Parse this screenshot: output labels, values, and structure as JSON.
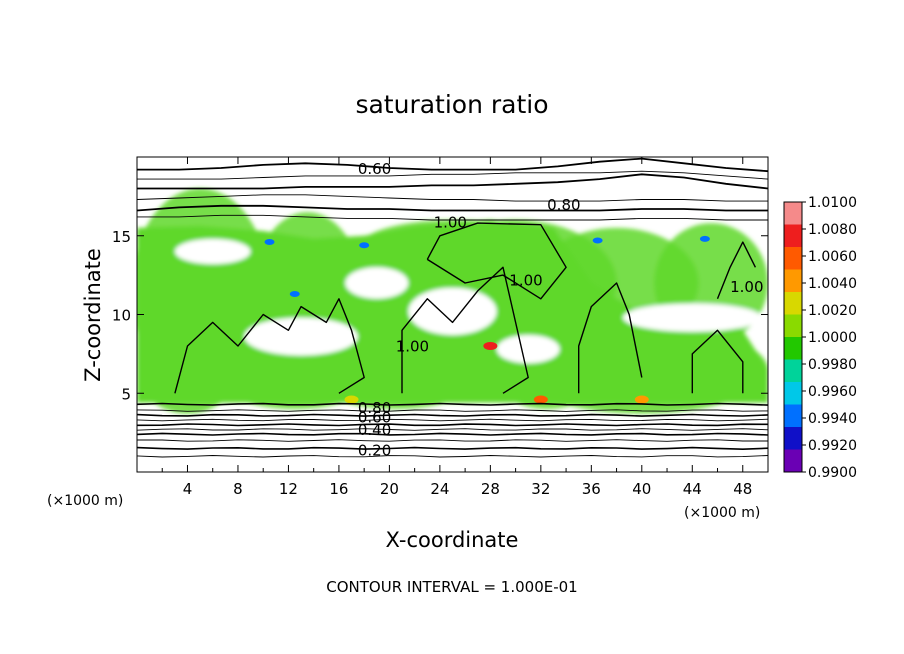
{
  "chart_data": {
    "type": "contour",
    "title": "saturation ratio",
    "xlabel": "X-coordinate",
    "ylabel": "Z-coordinate",
    "x_unit_label": "(×1000 m)",
    "z_unit_label": "(×1000 m)",
    "footer": "CONTOUR INTERVAL = 1.000E-01",
    "xlim": [
      0,
      50
    ],
    "ylim": [
      0,
      20
    ],
    "x_ticks": [
      4,
      8,
      12,
      16,
      20,
      24,
      28,
      32,
      36,
      40,
      44,
      48
    ],
    "y_ticks": [
      5,
      10,
      15
    ],
    "contour_interval": 0.1,
    "contour_labels": [
      {
        "text": "0.60",
        "x": 17.5,
        "z": 19.0
      },
      {
        "text": "0.80",
        "x": 32.5,
        "z": 16.7
      },
      {
        "text": "1.00",
        "x": 23.5,
        "z": 15.6
      },
      {
        "text": "1.00",
        "x": 29.5,
        "z": 11.9
      },
      {
        "text": "1.00",
        "x": 20.5,
        "z": 7.7
      },
      {
        "text": "1.00",
        "x": 47.0,
        "z": 11.5
      },
      {
        "text": "0.80",
        "x": 17.5,
        "z": 3.8
      },
      {
        "text": "0.60",
        "x": 17.5,
        "z": 3.2
      },
      {
        "text": "0.40",
        "x": 17.5,
        "z": 2.4
      },
      {
        "text": "0.20",
        "x": 17.5,
        "z": 1.1
      }
    ],
    "upper_contours_z": [
      [
        19.2,
        19.2,
        19.3,
        19.5,
        19.6,
        19.5,
        19.3,
        19.2,
        19.2,
        19.2,
        19.4,
        19.7,
        19.9,
        19.6,
        19.3,
        19.1
      ],
      [
        18.6,
        18.6,
        18.6,
        18.7,
        18.8,
        18.8,
        18.8,
        18.9,
        18.9,
        19.0,
        19.0,
        19.0,
        19.1,
        19.0,
        18.8,
        18.6
      ],
      [
        18.0,
        18.0,
        18.0,
        18.0,
        18.1,
        18.1,
        18.1,
        18.2,
        18.2,
        18.3,
        18.4,
        18.6,
        18.9,
        18.7,
        18.3,
        18.0
      ],
      [
        17.3,
        17.4,
        17.5,
        17.6,
        17.6,
        17.5,
        17.4,
        17.3,
        17.3,
        17.2,
        17.2,
        17.2,
        17.3,
        17.3,
        17.2,
        17.2
      ],
      [
        16.6,
        16.8,
        16.9,
        16.9,
        16.8,
        16.7,
        16.7,
        16.6,
        16.6,
        16.6,
        16.6,
        16.6,
        16.7,
        16.7,
        16.6,
        16.6
      ],
      [
        16.2,
        16.2,
        16.3,
        16.3,
        16.2,
        16.1,
        16.1,
        16.0,
        16.0,
        16.0,
        16.0,
        16.0,
        16.1,
        16.1,
        16.0,
        16.0
      ]
    ],
    "lower_contours_z": [
      4.3,
      3.9,
      3.6,
      3.3,
      3.0,
      2.7,
      2.4,
      2.0,
      1.5,
      1.0
    ],
    "colorbar": {
      "labels": [
        "1.0100",
        "1.0080",
        "1.0060",
        "1.0040",
        "1.0020",
        "1.0000",
        "0.9980",
        "0.9960",
        "0.9940",
        "0.9920",
        "0.9900"
      ],
      "colors": [
        "#f58a8a",
        "#ee1e1e",
        "#ff5a00",
        "#ff9900",
        "#d8d800",
        "#8ada00",
        "#22c800",
        "#00d39a",
        "#00c8e8",
        "#0070ff",
        "#1010c8",
        "#6a00b4"
      ]
    },
    "cloud_color": "#5fd82a",
    "cloud_patches": [
      {
        "x": 5.0,
        "z": 11.5,
        "rx": 5.5,
        "rz": 6.5
      },
      {
        "x": 13.5,
        "z": 11.0,
        "rx": 4.5,
        "rz": 5.5
      },
      {
        "x": 4.0,
        "z": 6.5,
        "rx": 4.0,
        "rz": 2.8
      },
      {
        "x": 30.0,
        "z": 12.0,
        "rx": 8.0,
        "rz": 4.0
      },
      {
        "x": 38.0,
        "z": 12.0,
        "rx": 6.5,
        "rz": 3.5
      },
      {
        "x": 45.5,
        "z": 12.0,
        "rx": 4.5,
        "rz": 3.8
      },
      {
        "x": 40.0,
        "z": 6.5,
        "rx": 10.0,
        "rz": 2.8
      },
      {
        "x": 12.5,
        "z": 6.2,
        "rx": 6.5,
        "rz": 2.2
      },
      {
        "x": 25.0,
        "z": 14.2,
        "rx": 7.5,
        "rz": 1.8
      },
      {
        "x": 20.5,
        "z": 6.0,
        "rx": 6.5,
        "rz": 2.0
      },
      {
        "x": 32.5,
        "z": 6.0,
        "rx": 4.0,
        "rz": 2.0
      },
      {
        "x": 26.5,
        "z": 10.5,
        "rx": 5.5,
        "rz": 3.0
      }
    ]
  }
}
